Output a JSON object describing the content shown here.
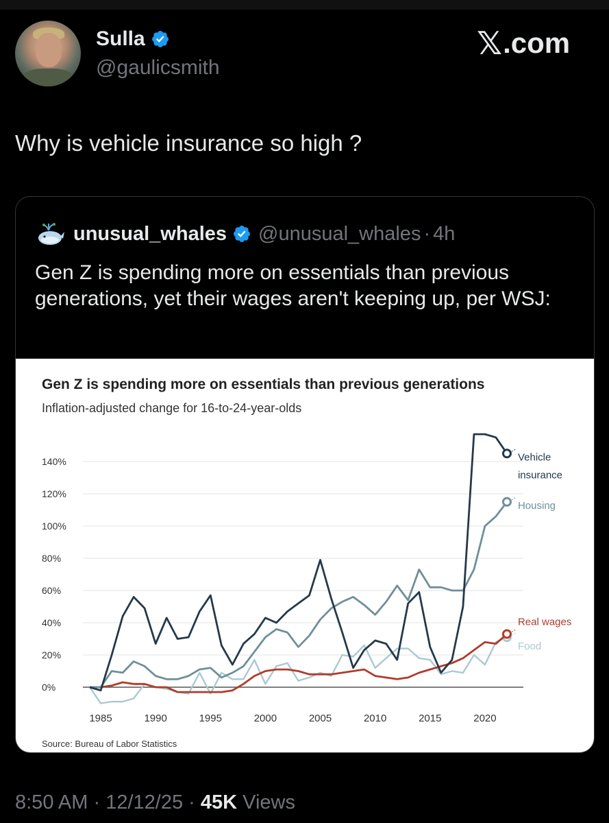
{
  "author": {
    "name": "Sulla",
    "handle": "@gaulicsmith"
  },
  "brand": {
    "logo_text": ".com",
    "logo_glyph": "𝕏"
  },
  "tweet": {
    "text": "Why is vehicle insurance so high ?"
  },
  "quoted": {
    "name": "unusual_whales",
    "handle": "@unusual_whales",
    "separator": "·",
    "time": "4h",
    "text": "Gen Z is spending more on essentials than previous generations, yet their wages aren't keeping up, per WSJ:"
  },
  "meta": {
    "time": "8:50 AM",
    "sep1": "·",
    "date": "12/12/25",
    "sep2": "·",
    "views_count": "45K",
    "views_label": "Views"
  },
  "colors": {
    "verified": "#1d9bf0",
    "vehicle": "#24394a",
    "housing": "#6f8f9a",
    "wages": "#b23a2a",
    "food": "#a9c9d2"
  },
  "chart_data": {
    "type": "line",
    "title": "Gen Z is spending more on essentials than previous generations",
    "subtitle": "Inflation-adjusted change for 16-to-24-year-olds",
    "source": "Source: Bureau of Labor Statistics",
    "x_ticks": [
      1985,
      1990,
      1995,
      2000,
      2005,
      2010,
      2015,
      2020
    ],
    "x_tick_labels": [
      "1985",
      "1990",
      "1995",
      "2000",
      "2005",
      "2010",
      "2015",
      "2020"
    ],
    "y_ticks": [
      0,
      20,
      40,
      60,
      80,
      100,
      120,
      140
    ],
    "y_tick_labels": [
      "0%",
      "20%",
      "40%",
      "60%",
      "80%",
      "100%",
      "120%",
      "140%"
    ],
    "xlim": [
      1984,
      2023
    ],
    "ylim": [
      -12,
      158
    ],
    "x": [
      1984,
      1985,
      1986,
      1987,
      1988,
      1989,
      1990,
      1991,
      1992,
      1993,
      1994,
      1995,
      1996,
      1997,
      1998,
      1999,
      2000,
      2001,
      2002,
      2003,
      2004,
      2005,
      2006,
      2007,
      2008,
      2009,
      2010,
      2011,
      2012,
      2013,
      2014,
      2015,
      2016,
      2017,
      2018,
      2019,
      2020,
      2021,
      2022
    ],
    "series": [
      {
        "name": "Vehicle insurance",
        "label_lines": [
          "Vehicle",
          "insurance"
        ],
        "color_key": "vehicle",
        "values": [
          0,
          -2,
          20,
          44,
          56,
          49,
          27,
          43,
          30,
          31,
          47,
          57,
          26,
          14,
          27,
          33,
          43,
          40,
          47,
          52,
          57,
          79,
          55,
          34,
          12,
          23,
          29,
          27,
          17,
          52,
          59,
          25,
          9,
          17,
          50,
          157,
          157,
          155,
          145
        ]
      },
      {
        "name": "Housing",
        "label_lines": [
          "Housing"
        ],
        "color_key": "housing",
        "values": [
          0,
          0,
          10,
          9,
          16,
          13,
          7,
          5,
          5,
          7,
          11,
          12,
          6,
          9,
          13,
          22,
          31,
          36,
          34,
          25,
          32,
          42,
          49,
          53,
          56,
          51,
          45,
          53,
          63,
          54,
          73,
          62,
          62,
          60,
          60,
          73,
          100,
          106,
          115
        ]
      },
      {
        "name": "Real wages",
        "label_lines": [
          "Real wages"
        ],
        "color_key": "wages",
        "values": [
          0,
          0,
          1,
          3,
          2,
          2,
          0,
          0,
          -3,
          -3,
          -3,
          -3,
          -3,
          -2,
          2,
          7,
          10,
          11,
          11,
          10,
          8,
          8,
          8,
          9,
          10,
          11,
          7,
          6,
          5,
          6,
          9,
          11,
          13,
          15,
          18,
          23,
          28,
          27,
          33
        ]
      },
      {
        "name": "Food",
        "label_lines": [
          "Food"
        ],
        "color_key": "food",
        "values": [
          0,
          -10,
          -9,
          -9,
          -7,
          2,
          0,
          -1,
          -3,
          -4,
          9,
          -4,
          9,
          5,
          5,
          17,
          2,
          13,
          15,
          4,
          6,
          9,
          7,
          20,
          19,
          26,
          12,
          18,
          24,
          24,
          18,
          17,
          8,
          10,
          9,
          20,
          14,
          28,
          31
        ]
      }
    ]
  }
}
